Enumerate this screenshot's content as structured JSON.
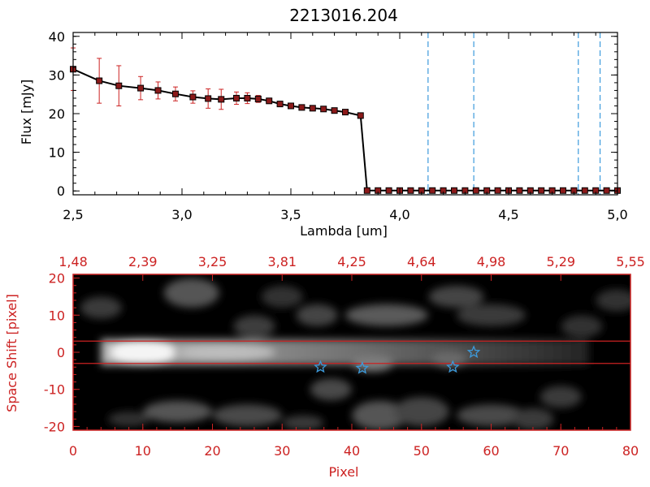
{
  "figure": {
    "title": "2213016.204",
    "background": "#ffffff",
    "accent_color": "#cc2222",
    "axis_color": "#000000"
  },
  "chart_data": [
    {
      "type": "line",
      "title": "2213016.204",
      "xlabel": "Lambda [um]",
      "ylabel": "Flux [mJy]",
      "xlim": [
        2.5,
        5.0
      ],
      "ylim": [
        -1,
        41
      ],
      "xticks": [
        2.5,
        3.0,
        3.5,
        4.0,
        4.5,
        5.0
      ],
      "xtick_labels": [
        "2,5",
        "3,0",
        "3,5",
        "4,0",
        "4,5",
        "5,0"
      ],
      "yticks": [
        0,
        10,
        20,
        30,
        40
      ],
      "ytick_labels": [
        "0",
        "10",
        "20",
        "30",
        "40"
      ],
      "series": [
        {
          "color": "#000000",
          "marker_color": "#8b1a1a",
          "errorbar_color": "#cc2222",
          "x": [
            2.5,
            2.62,
            2.71,
            2.81,
            2.89,
            2.97,
            3.05,
            3.12,
            3.18,
            3.25,
            3.3,
            3.35,
            3.4,
            3.45,
            3.5,
            3.55,
            3.6,
            3.65,
            3.7,
            3.75,
            3.82,
            3.85,
            3.9,
            3.95,
            4.0,
            4.05,
            4.1,
            4.15,
            4.2,
            4.25,
            4.3,
            4.35,
            4.4,
            4.45,
            4.5,
            4.55,
            4.6,
            4.65,
            4.7,
            4.75,
            4.8,
            4.85,
            4.9,
            4.95,
            5.0
          ],
          "y": [
            31.5,
            28.5,
            27.2,
            26.6,
            26.0,
            25.1,
            24.3,
            23.9,
            23.7,
            24.0,
            24.0,
            23.8,
            23.3,
            22.5,
            22.0,
            21.6,
            21.4,
            21.2,
            20.8,
            20.4,
            19.5,
            0.1,
            0.1,
            0.1,
            0.1,
            0.1,
            0.1,
            0.1,
            0.1,
            0.1,
            0.1,
            0.1,
            0.1,
            0.1,
            0.1,
            0.1,
            0.1,
            0.1,
            0.1,
            0.1,
            0.1,
            0.1,
            0.1,
            0.1,
            0.1
          ],
          "yerr": [
            5.5,
            5.8,
            5.2,
            3.0,
            2.2,
            1.8,
            1.6,
            2.5,
            2.6,
            1.6,
            1.4,
            0.9,
            0.7,
            0.6,
            0.5,
            0.5,
            0.5,
            0.5,
            0.5,
            0.5,
            0.6,
            0,
            0,
            0,
            0,
            0,
            0,
            0,
            0,
            0,
            0,
            0,
            0,
            0,
            0,
            0,
            0,
            0,
            0,
            0,
            0,
            0,
            0,
            0,
            0
          ]
        }
      ],
      "vlines": {
        "color": "#3d9bdc",
        "style": "dashed",
        "x": [
          4.13,
          4.34,
          4.82,
          4.92
        ]
      }
    },
    {
      "type": "heatmap",
      "xlabel": "Pixel",
      "ylabel": "Space Shift [pixel]",
      "xlim": [
        0,
        80
      ],
      "ylim": [
        -21,
        21
      ],
      "xticks": [
        0,
        10,
        20,
        30,
        40,
        50,
        60,
        70,
        80
      ],
      "yticks": [
        -20,
        -10,
        0,
        10,
        20
      ],
      "top_axis_labels": [
        "1,48",
        "2,39",
        "3,25",
        "3,81",
        "4,25",
        "4,64",
        "4,98",
        "5,29",
        "5,55"
      ],
      "colormap": "grayscale",
      "label_color": "#cc2222",
      "horizontal_lines": {
        "y": [
          3,
          -3
        ],
        "color": "#cc2222"
      },
      "stars": {
        "color": "#3d9bdc",
        "points": [
          [
            35.5,
            -4
          ],
          [
            41.5,
            -4.3
          ],
          [
            54.5,
            -4
          ],
          [
            57.5,
            0
          ]
        ]
      }
    }
  ]
}
